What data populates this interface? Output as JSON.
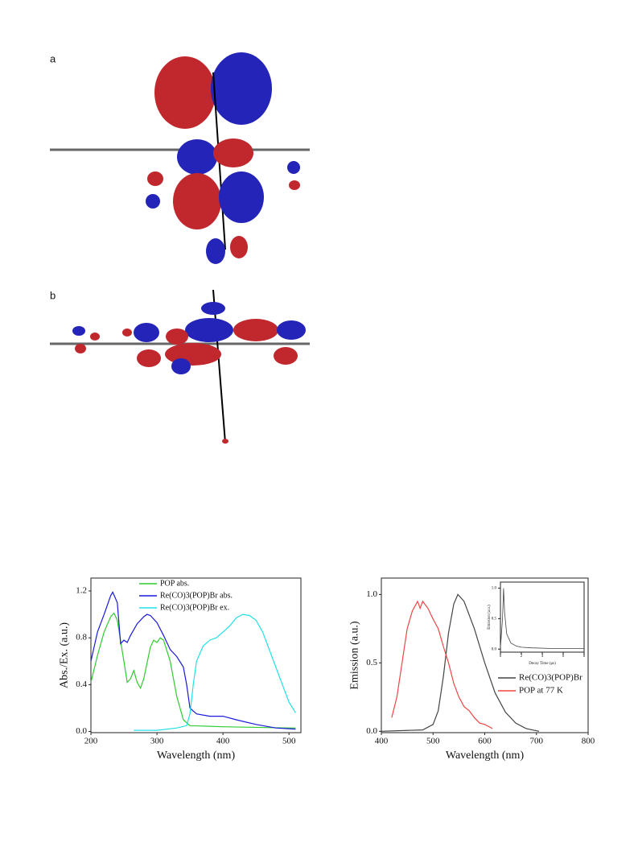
{
  "panel_labels": [
    "a",
    "b"
  ],
  "chart_data": [
    {
      "type": "line",
      "xlabel": "Wavelength (nm)",
      "ylabel": "Abs./Ex. (a.u.)",
      "xlim": [
        200,
        518
      ],
      "ylim": [
        -0.01,
        1.31
      ],
      "xticks": [
        200,
        300,
        400,
        500
      ],
      "yticks": [
        {
          "value": 0,
          "label": "0.0"
        },
        0.4,
        0.8,
        1.2
      ],
      "legend": "upper center",
      "series": [
        {
          "name": "POP abs.",
          "color": "#2ecc2e",
          "x": [
            200,
            210,
            220,
            230,
            235,
            240,
            250,
            255,
            260,
            265,
            270,
            275,
            280,
            290,
            295,
            300,
            305,
            310,
            320,
            330,
            340,
            350,
            400,
            500,
            510
          ],
          "values": [
            0.42,
            0.65,
            0.85,
            0.98,
            1.01,
            0.95,
            0.6,
            0.42,
            0.45,
            0.52,
            0.42,
            0.37,
            0.45,
            0.72,
            0.78,
            0.76,
            0.8,
            0.78,
            0.6,
            0.3,
            0.1,
            0.05,
            0.04,
            0.03,
            0.03
          ]
        },
        {
          "name": "Re(CO)3(POP)Br abs.",
          "color": "#1a1adb",
          "x": [
            200,
            210,
            220,
            230,
            233,
            240,
            245,
            250,
            255,
            260,
            270,
            280,
            285,
            290,
            300,
            310,
            320,
            330,
            340,
            345,
            350,
            360,
            380,
            400,
            420,
            450,
            480,
            510
          ],
          "values": [
            0.6,
            0.85,
            1.0,
            1.16,
            1.19,
            1.1,
            0.75,
            0.78,
            0.76,
            0.82,
            0.92,
            0.98,
            1.0,
            0.99,
            0.93,
            0.82,
            0.7,
            0.64,
            0.55,
            0.4,
            0.2,
            0.15,
            0.13,
            0.13,
            0.1,
            0.06,
            0.03,
            0.02
          ]
        },
        {
          "name": "Re(CO)3(POP)Br ex.",
          "color": "#22e0e8",
          "x": [
            265,
            300,
            330,
            345,
            350,
            355,
            360,
            370,
            380,
            390,
            400,
            410,
            420,
            430,
            440,
            450,
            460,
            470,
            480,
            490,
            500,
            510
          ],
          "values": [
            0.01,
            0.01,
            0.03,
            0.05,
            0.15,
            0.4,
            0.6,
            0.73,
            0.78,
            0.8,
            0.85,
            0.9,
            0.97,
            1.0,
            0.99,
            0.95,
            0.85,
            0.7,
            0.55,
            0.4,
            0.25,
            0.16
          ]
        }
      ]
    },
    {
      "type": "line",
      "xlabel": "Wavelength (nm)",
      "ylabel": "Emission (a.u.)",
      "xlim": [
        400,
        800
      ],
      "ylim": [
        -0.01,
        1.12
      ],
      "xticks": [
        400,
        500,
        600,
        700,
        800
      ],
      "yticks": [
        {
          "value": 0,
          "label": "0.0"
        },
        0.5,
        {
          "value": 1,
          "label": "1.0"
        }
      ],
      "legend": "lower right",
      "series": [
        {
          "name": "Re(CO)3(POP)Br",
          "color": "#444444",
          "x": [
            400,
            480,
            500,
            510,
            520,
            530,
            540,
            548,
            560,
            580,
            600,
            620,
            640,
            660,
            680,
            705
          ],
          "values": [
            0,
            0.01,
            0.05,
            0.15,
            0.4,
            0.72,
            0.93,
            1.0,
            0.95,
            0.75,
            0.5,
            0.28,
            0.14,
            0.06,
            0.02,
            0
          ]
        },
        {
          "name": "POP at 77 K",
          "color": "#f04545",
          "x": [
            420,
            430,
            440,
            450,
            460,
            470,
            475,
            480,
            490,
            500,
            510,
            520,
            530,
            540,
            550,
            560,
            570,
            580,
            590,
            600,
            615
          ],
          "values": [
            0.1,
            0.25,
            0.5,
            0.75,
            0.88,
            0.95,
            0.9,
            0.95,
            0.9,
            0.82,
            0.75,
            0.62,
            0.5,
            0.35,
            0.25,
            0.18,
            0.15,
            0.1,
            0.06,
            0.05,
            0.02
          ]
        }
      ]
    },
    {
      "type": "line",
      "xlabel": "Decay Time (μs)",
      "ylabel": "Emission (a.u.)",
      "xlim": [
        0,
        8
      ],
      "ylim": [
        -0.05,
        1.1
      ],
      "xticks": [
        0,
        2,
        4,
        6,
        8
      ],
      "yticks": [
        {
          "value": 0,
          "label": "0.0"
        },
        0.5,
        {
          "value": 1,
          "label": "1.0"
        }
      ],
      "series": [
        {
          "color": "#444444",
          "x": [
            0,
            0.2,
            0.3,
            0.4,
            0.6,
            1,
            1.5,
            2,
            3,
            5,
            8
          ],
          "values": [
            0.02,
            0.5,
            1.0,
            0.6,
            0.25,
            0.1,
            0.05,
            0.03,
            0.02,
            0.01,
            0.01
          ]
        }
      ]
    }
  ]
}
